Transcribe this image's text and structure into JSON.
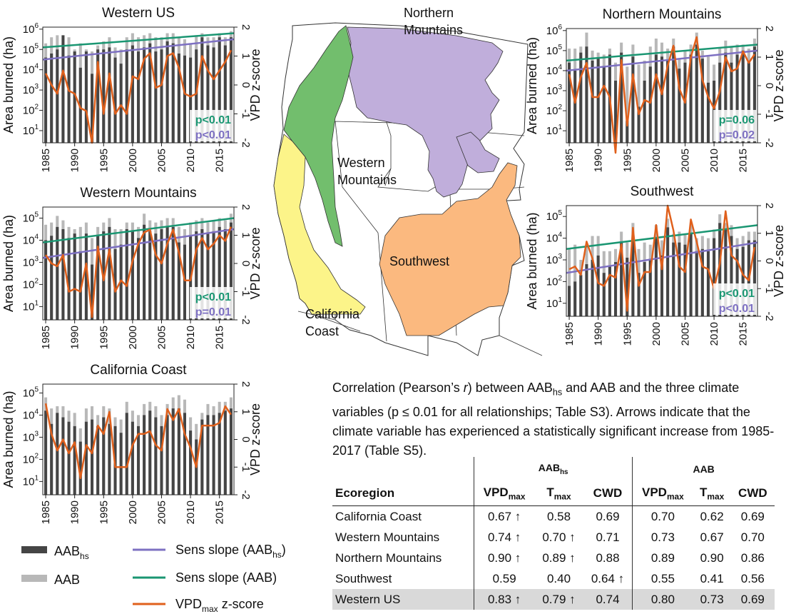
{
  "colors": {
    "aab_hs": "#454545",
    "aab": "#b8b8b8",
    "sens_hs": "#7d70c2",
    "sens_aab": "#1a9672",
    "vpd": "#e0601c",
    "map": {
      "cal": "#fcf489",
      "wm": "#72be6d",
      "nm": "#c0aedb",
      "sw": "#fbb97f",
      "other": "#ffffff"
    }
  },
  "legend": {
    "aab_hs": {
      "main": "AAB",
      "sub": "hs"
    },
    "aab": "AAB",
    "sens_hs": {
      "main": "Sens slope (AAB",
      "sub": "hs",
      "tail": ")"
    },
    "sens_aab": "Sens slope (AAB)",
    "vpd": {
      "main": "VPD",
      "sub": "max",
      "tail": " z-score"
    }
  },
  "map_labels": {
    "nm": [
      "Northern",
      "Mountains"
    ],
    "wm": [
      "Western",
      "Mountains"
    ],
    "sw": "Southwest",
    "cal": [
      "California",
      "Coast"
    ]
  },
  "caption": {
    "part1": "Correlation (Pearson’s ",
    "r": "r",
    "part2": ") between AAB",
    "hs": "hs",
    "part3": " and AAB and the three climate variables (p ≤ 0.01 for all relationships; Table S3). Arrows indicate that the climate variable has experienced a statistically significant increase from 1985-2017 (Table S5)."
  },
  "table": {
    "group1": "AAB",
    "group1_sub": "hs",
    "group2": "AAB",
    "col_ecoregion": "Ecoregion",
    "vpd_main": "VPD",
    "vpd_sub": "max",
    "tmax_main": "T",
    "tmax_sub": "max",
    "cwd": "CWD",
    "rows": [
      {
        "name": "California Coast",
        "v": [
          "0.67 ↑",
          "0.58",
          "0.69",
          "0.70",
          "0.62",
          "0.69"
        ]
      },
      {
        "name": "Western Mountains",
        "v": [
          "0.74 ↑",
          "0.70 ↑",
          "0.71",
          "0.73",
          "0.67",
          "0.70"
        ]
      },
      {
        "name": "Northern Mountains",
        "v": [
          "0.90 ↑",
          "0.89 ↑",
          "0.88",
          "0.89",
          "0.90",
          "0.86"
        ]
      },
      {
        "name": "Southwest",
        "v": [
          "0.59",
          "0.40",
          "0.64 ↑",
          "0.55",
          "0.41",
          "0.56"
        ]
      },
      {
        "name": "Western US",
        "v": [
          "0.83 ↑",
          "0.79 ↑",
          "0.74",
          "0.80",
          "0.73",
          "0.69"
        ]
      }
    ]
  },
  "chart_data": [
    {
      "type": "bar",
      "title": "Western US",
      "ylabel": "Area burned (ha)",
      "ylabel_right": "VPD z-score",
      "x": [
        1985,
        1986,
        1987,
        1988,
        1989,
        1990,
        1991,
        1992,
        1993,
        1994,
        1995,
        1996,
        1997,
        1998,
        1999,
        2000,
        2001,
        2002,
        2003,
        2004,
        2005,
        2006,
        2007,
        2008,
        2009,
        2010,
        2011,
        2012,
        2013,
        2014,
        2015,
        2016,
        2017
      ],
      "xticks": [
        "1985",
        "1990",
        "1995",
        "2000",
        "2005",
        "2010",
        "2015"
      ],
      "yticks_log": [
        1,
        2,
        3,
        4,
        5,
        6
      ],
      "ylim_log": [
        0.4,
        6.1
      ],
      "y2ticks": [
        "2",
        "1",
        "0",
        "-1",
        "-2"
      ],
      "y2lim": [
        -2,
        2
      ],
      "series": [
        {
          "key": "aab",
          "values_log": [
            5.3,
            5.6,
            5.7,
            5.3,
            5.6,
            5.0,
            5.3,
            5.0,
            4.9,
            5.2,
            5.4,
            5.6,
            5.1,
            5.0,
            5.6,
            5.8,
            5.6,
            5.7,
            5.8,
            5.6,
            5.6,
            5.8,
            5.8,
            5.6,
            5.5,
            5.3,
            5.7,
            5.8,
            5.6,
            5.6,
            5.8,
            5.6,
            5.9
          ]
        },
        {
          "key": "aab_hs",
          "values_log": [
            4.6,
            4.8,
            5.0,
            5.7,
            4.7,
            4.9,
            4.1,
            4.9,
            3.8,
            5.0,
            5.0,
            5.1,
            4.6,
            4.3,
            5.0,
            5.2,
            4.9,
            5.1,
            5.3,
            4.9,
            5.0,
            5.4,
            5.3,
            4.8,
            4.7,
            4.6,
            5.0,
            5.6,
            5.2,
            5.1,
            5.6,
            5.2,
            5.6
          ]
        },
        {
          "key": "vpd",
          "values": [
            0.4,
            0,
            -0.3,
            0.5,
            -0.2,
            -0.3,
            -0.8,
            -0.9,
            -2.0,
            0.8,
            -1.0,
            0.4,
            -1.0,
            -0.7,
            -1.0,
            0.3,
            0.2,
            0.9,
            1.1,
            -0.1,
            0.0,
            1.0,
            1.1,
            0.6,
            -0.3,
            -0.4,
            -0.3,
            1.0,
            0.5,
            0.2,
            0.5,
            0.8,
            1.2
          ]
        }
      ],
      "sens_aab_log": [
        5.1,
        5.8
      ],
      "sens_hs_log": [
        4.5,
        5.5
      ],
      "p_aab": "p<0.01",
      "p_hs": "p<0.01"
    },
    {
      "type": "bar",
      "title": "Western Mountains",
      "ylabel": "Area burned (ha)",
      "ylabel_right": "VPD z-score",
      "x": [
        1985,
        1986,
        1987,
        1988,
        1989,
        1990,
        1991,
        1992,
        1993,
        1994,
        1995,
        1996,
        1997,
        1998,
        1999,
        2000,
        2001,
        2002,
        2003,
        2004,
        2005,
        2006,
        2007,
        2008,
        2009,
        2010,
        2011,
        2012,
        2013,
        2014,
        2015,
        2016,
        2017
      ],
      "xticks": [
        "1985",
        "1990",
        "1995",
        "2000",
        "2005",
        "2010",
        "2015"
      ],
      "yticks_log": [
        1,
        2,
        3,
        4,
        5
      ],
      "ylim_log": [
        0.4,
        5.5
      ],
      "y2ticks": [
        "2",
        "1",
        "0",
        "-1",
        "-2"
      ],
      "y2lim": [
        -2,
        2
      ],
      "series": [
        {
          "key": "aab",
          "values_log": [
            4.7,
            4.8,
            5.1,
            4.9,
            4.6,
            4.5,
            4.6,
            4.8,
            4.1,
            4.6,
            4.8,
            5.0,
            4.5,
            4.5,
            4.8,
            4.8,
            4.6,
            5.2,
            4.9,
            4.8,
            4.9,
            5.0,
            5.0,
            4.6,
            4.5,
            4.8,
            4.9,
            5.0,
            4.8,
            4.9,
            5.0,
            4.9,
            5.2
          ]
        },
        {
          "key": "aab_hs",
          "values_log": [
            4.0,
            4.2,
            4.6,
            4.5,
            4.1,
            4.3,
            3.5,
            4.3,
            2.9,
            4.2,
            4.4,
            4.6,
            3.6,
            3.8,
            4.5,
            4.4,
            4.1,
            4.7,
            4.4,
            4.3,
            4.5,
            4.6,
            4.6,
            3.9,
            3.8,
            4.2,
            4.4,
            4.5,
            4.3,
            4.4,
            4.6,
            4.5,
            4.8
          ]
        },
        {
          "key": "vpd",
          "values": [
            0.3,
            0.0,
            -0.1,
            0.3,
            -1.0,
            -0.9,
            -1.0,
            0.0,
            -1.9,
            0.6,
            -0.6,
            0.5,
            -1.0,
            -0.6,
            -0.8,
            0.1,
            0.7,
            1.1,
            1.2,
            0.3,
            0.0,
            0.7,
            1.2,
            0.4,
            -0.6,
            -0.6,
            0.5,
            0.9,
            0.5,
            0.7,
            1.0,
            0.8,
            1.3
          ]
        }
      ],
      "sens_aab_log": [
        3.9,
        5.0
      ],
      "sens_hs_log": [
        3.2,
        4.5
      ],
      "p_aab": "p<0.01",
      "p_hs": "p=0.01"
    },
    {
      "type": "bar",
      "title": "California Coast",
      "ylabel": "Area burned (ha)",
      "ylabel_right": "VPD z-score",
      "x": [
        1985,
        1986,
        1987,
        1988,
        1989,
        1990,
        1991,
        1992,
        1993,
        1994,
        1995,
        1996,
        1997,
        1998,
        1999,
        2000,
        2001,
        2002,
        2003,
        2004,
        2005,
        2006,
        2007,
        2008,
        2009,
        2010,
        2011,
        2012,
        2013,
        2014,
        2015,
        2016,
        2017
      ],
      "xticks": [
        "1985",
        "1990",
        "1995",
        "2000",
        "2005",
        "2010",
        "2015"
      ],
      "yticks_log": [
        1,
        2,
        3,
        4,
        5
      ],
      "ylim_log": [
        0.4,
        5.4
      ],
      "y2ticks": [
        "2",
        "1",
        "0",
        "-1",
        "-2"
      ],
      "y2lim": [
        -2,
        2
      ],
      "series": [
        {
          "key": "aab",
          "values_log": [
            4.8,
            4.3,
            4.4,
            4.4,
            4.2,
            4.1,
            3.4,
            4.3,
            4.4,
            4.0,
            4.4,
            4.3,
            3.9,
            3.8,
            4.6,
            4.2,
            4.0,
            4.5,
            4.6,
            4.4,
            4.0,
            4.5,
            4.8,
            4.9,
            4.7,
            3.9,
            3.6,
            4.1,
            4.5,
            4.4,
            4.6,
            4.6,
            4.8
          ]
        },
        {
          "key": "aab_hs",
          "values_log": [
            4.2,
            3.6,
            4.1,
            3.9,
            3.7,
            3.5,
            2.8,
            3.7,
            3.8,
            3.5,
            3.9,
            3.6,
            3.5,
            3.2,
            4.1,
            3.7,
            3.5,
            4.0,
            4.2,
            3.9,
            3.5,
            4.0,
            4.3,
            4.3,
            4.1,
            3.3,
            2.9,
            3.8,
            4.0,
            4.0,
            4.1,
            4.2,
            4.3
          ]
        },
        {
          "key": "vpd",
          "values": [
            1.3,
            0.2,
            -0.4,
            0.0,
            -0.5,
            -0.1,
            -1.4,
            -0.2,
            -0.5,
            0.5,
            0.2,
            1.0,
            -1.0,
            -1.0,
            -1.0,
            -0.2,
            0.2,
            0.2,
            0.3,
            -0.2,
            -0.4,
            1.1,
            0.7,
            1.1,
            0.2,
            -0.3,
            -1.0,
            0.5,
            0.5,
            0.5,
            0.6,
            1.2,
            0.9
          ]
        }
      ]
    },
    {
      "type": "bar",
      "title": "Northern Mountains",
      "ylabel": "Area burned (ha)",
      "ylabel_right": "VPD z-score",
      "x": [
        1985,
        1986,
        1987,
        1988,
        1989,
        1990,
        1991,
        1992,
        1993,
        1994,
        1995,
        1996,
        1997,
        1998,
        1999,
        2000,
        2001,
        2002,
        2003,
        2004,
        2005,
        2006,
        2007,
        2008,
        2009,
        2010,
        2011,
        2012,
        2013,
        2014,
        2015,
        2016,
        2017
      ],
      "xticks": [
        "1985",
        "1990",
        "1995",
        "2000",
        "2005",
        "2010",
        "2015"
      ],
      "yticks_log": [
        1,
        2,
        3,
        4,
        5,
        6
      ],
      "ylim_log": [
        0.4,
        6.1
      ],
      "y2ticks": [
        "2",
        "1",
        "0",
        "-1",
        "-2"
      ],
      "y2lim": [
        -2,
        2
      ],
      "series": [
        {
          "key": "aab",
          "values_log": [
            5.1,
            5.1,
            5.2,
            5.9,
            5.0,
            4.9,
            4.8,
            5.1,
            4.4,
            5.4,
            4.2,
            5.3,
            4.3,
            4.5,
            5.2,
            5.6,
            5.4,
            5.1,
            5.6,
            4.6,
            5.0,
            5.3,
            5.9,
            5.0,
            4.7,
            4.3,
            5.1,
            5.5,
            5.2,
            5.3,
            5.3,
            5.1,
            5.6
          ]
        },
        {
          "key": "aab_hs",
          "values_log": [
            4.4,
            4.0,
            4.9,
            5.2,
            4.5,
            4.6,
            4.2,
            4.8,
            3.5,
            4.9,
            1.5,
            4.7,
            2.2,
            3.5,
            4.2,
            4.8,
            4.7,
            4.5,
            5.2,
            4.1,
            4.4,
            4.8,
            5.3,
            4.6,
            3.4,
            3.5,
            4.4,
            4.9,
            4.4,
            4.8,
            5.0,
            4.5,
            5.2
          ]
        },
        {
          "key": "vpd",
          "values": [
            0.4,
            -0.6,
            0.3,
            0.8,
            -0.4,
            -0.4,
            0.0,
            -0.4,
            -3.0,
            0.9,
            -1.4,
            0.4,
            -1.0,
            -0.5,
            -0.6,
            0.4,
            -0.3,
            0.7,
            1.4,
            -0.1,
            -0.6,
            1.0,
            1.7,
            0.2,
            -0.4,
            -0.8,
            -0.2,
            1.0,
            0.5,
            0.6,
            1.2,
            0.8,
            1.1
          ]
        }
      ],
      "sens_aab_log": [
        4.5,
        5.3
      ],
      "sens_hs_log": [
        4.0,
        5.0
      ],
      "p_aab": "p=0.06",
      "p_hs": "p=0.02"
    },
    {
      "type": "bar",
      "title": "Southwest",
      "ylabel": "Area burned (ha)",
      "ylabel_right": "VPD z-score",
      "x": [
        1985,
        1986,
        1987,
        1988,
        1989,
        1990,
        1991,
        1992,
        1993,
        1994,
        1995,
        1996,
        1997,
        1998,
        1999,
        2000,
        2001,
        2002,
        2003,
        2004,
        2005,
        2006,
        2007,
        2008,
        2009,
        2010,
        2011,
        2012,
        2013,
        2014,
        2015,
        2016,
        2017
      ],
      "xticks": [
        "1985",
        "1990",
        "1995",
        "2000",
        "2005",
        "2010",
        "2015"
      ],
      "yticks_log": [
        1,
        2,
        3,
        4,
        5
      ],
      "ylim_log": [
        0.4,
        5.5
      ],
      "y2ticks": [
        "2",
        "1",
        "0",
        "-1",
        "-2"
      ],
      "y2lim": [
        -2,
        2
      ],
      "series": [
        {
          "key": "aab",
          "values_log": [
            3.5,
            3.7,
            3.0,
            3.6,
            4.1,
            4.1,
            3.4,
            3.4,
            3.5,
            4.3,
            3.8,
            4.7,
            3.5,
            3.8,
            3.7,
            4.6,
            3.9,
            4.9,
            4.2,
            4.3,
            4.2,
            4.6,
            4.0,
            4.1,
            4.0,
            4.4,
            5.1,
            4.7,
            4.6,
            4.0,
            4.1,
            4.3,
            4.3
          ]
        },
        {
          "key": "aab_hs",
          "values_log": [
            1.8,
            2.0,
            2.3,
            2.8,
            3.0,
            3.2,
            2.4,
            2.7,
            2.9,
            3.8,
            3.1,
            4.0,
            2.4,
            2.9,
            3.0,
            4.0,
            3.2,
            4.5,
            3.8,
            3.8,
            3.7,
            4.2,
            3.4,
            3.5,
            3.4,
            4.0,
            4.7,
            4.4,
            4.1,
            3.5,
            3.6,
            3.9,
            3.9
          ]
        },
        {
          "key": "vpd",
          "values": [
            -0.3,
            -0.2,
            -0.5,
            0.7,
            0.1,
            -0.8,
            -0.9,
            -0.5,
            -0.6,
            0.6,
            -1.8,
            1.2,
            -0.9,
            -0.4,
            -0.4,
            1.3,
            -0.3,
            2.0,
            1.1,
            -0.2,
            -0.4,
            1.5,
            0.7,
            -0.2,
            -0.3,
            -1.0,
            -0.1,
            1.8,
            0.2,
            0.0,
            -0.5,
            -0.7,
            0.5
          ]
        }
      ],
      "sens_aab_log": [
        3.5,
        4.6
      ],
      "sens_hs_log": [
        2.4,
        3.8
      ],
      "p_aab": "p<0.01",
      "p_hs": "p<0.01"
    }
  ]
}
